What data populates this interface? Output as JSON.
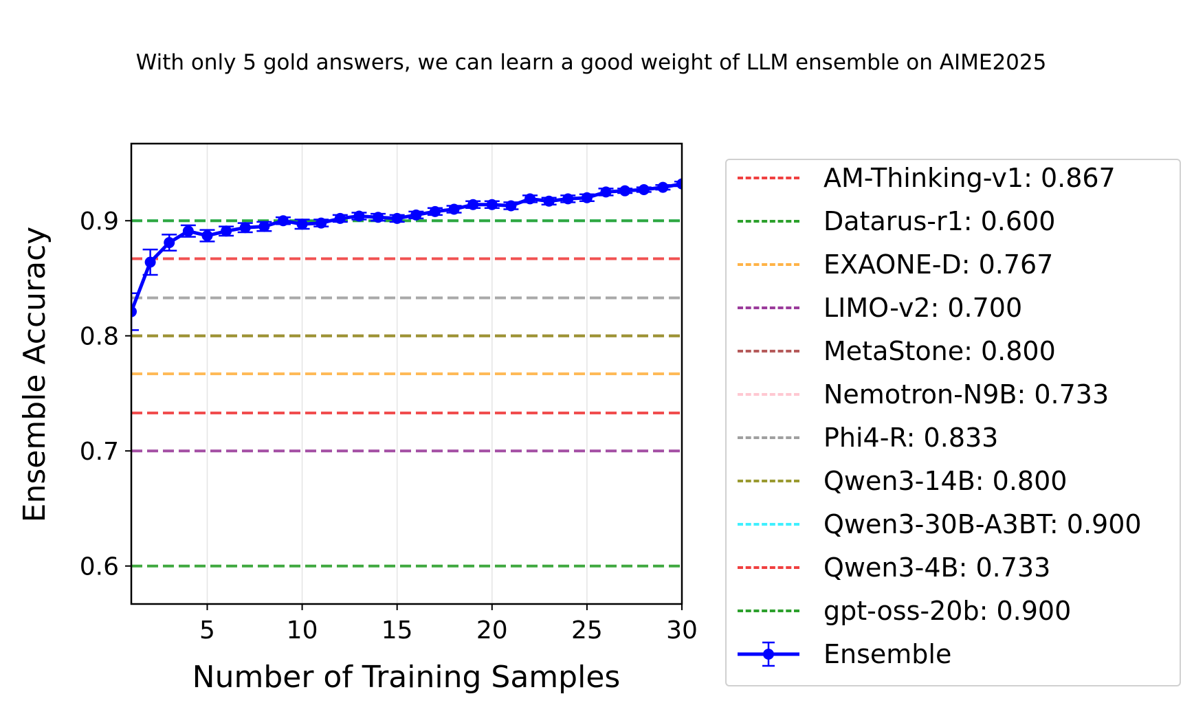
{
  "chart_data": {
    "type": "line",
    "title": "With only 5 gold answers, we can learn a good weight of LLM ensemble on AIME2025",
    "xlabel": "Number of Training Samples",
    "ylabel": "Ensemble Accuracy",
    "xlim": [
      1,
      30
    ],
    "ylim": [
      0.567,
      0.967
    ],
    "xticks": [
      5,
      10,
      15,
      20,
      25,
      30
    ],
    "xtick_labels": [
      "5",
      "10",
      "15",
      "20",
      "25",
      "30"
    ],
    "yticks": [
      0.6,
      0.7,
      0.8,
      0.9
    ],
    "ytick_labels": [
      "0.6",
      "0.7",
      "0.8",
      "0.9"
    ],
    "grid": "x",
    "legend_position": "outside-right",
    "baselines": [
      {
        "name": "AM-Thinking-v1",
        "label": "AM-Thinking-v1: 0.867",
        "value": 0.867,
        "color": "#f04040"
      },
      {
        "name": "Datarus-r1",
        "label": "Datarus-r1: 0.600",
        "value": 0.6,
        "color": "#2ca02c"
      },
      {
        "name": "EXAONE-D",
        "label": "EXAONE-D: 0.767",
        "value": 0.767,
        "color": "#ffb347"
      },
      {
        "name": "LIMO-v2",
        "label": "LIMO-v2: 0.700",
        "value": 0.7,
        "color": "#9b3c9b"
      },
      {
        "name": "MetaStone",
        "label": "MetaStone: 0.800",
        "value": 0.8,
        "color": "#b55a5a"
      },
      {
        "name": "Nemotron-N9B",
        "label": "Nemotron-N9B: 0.733",
        "value": 0.733,
        "color": "#ffc8d2"
      },
      {
        "name": "Phi4-R",
        "label": "Phi4-R: 0.833",
        "value": 0.833,
        "color": "#a0a0a0"
      },
      {
        "name": "Qwen3-14B",
        "label": "Qwen3-14B: 0.800",
        "value": 0.8,
        "color": "#9a9a30"
      },
      {
        "name": "Qwen3-30B-A3BT",
        "label": "Qwen3-30B-A3BT: 0.900",
        "value": 0.9,
        "color": "#40f0ff"
      },
      {
        "name": "Qwen3-4B",
        "label": "Qwen3-4B: 0.733",
        "value": 0.733,
        "color": "#f04040"
      },
      {
        "name": "gpt-oss-20b",
        "label": "gpt-oss-20b: 0.900",
        "value": 0.9,
        "color": "#2ca02c"
      }
    ],
    "series": [
      {
        "name": "Ensemble",
        "label": "Ensemble",
        "color": "#0000ff",
        "x": [
          1,
          2,
          3,
          4,
          5,
          6,
          7,
          8,
          9,
          10,
          11,
          12,
          13,
          14,
          15,
          16,
          17,
          18,
          19,
          20,
          21,
          22,
          23,
          24,
          25,
          26,
          27,
          28,
          29,
          30
        ],
        "y": [
          0.821,
          0.864,
          0.881,
          0.891,
          0.887,
          0.891,
          0.894,
          0.895,
          0.9,
          0.897,
          0.898,
          0.902,
          0.904,
          0.903,
          0.902,
          0.905,
          0.908,
          0.91,
          0.914,
          0.914,
          0.913,
          0.919,
          0.917,
          0.919,
          0.92,
          0.925,
          0.926,
          0.927,
          0.929,
          0.932
        ],
        "err": [
          0.016,
          0.011,
          0.007,
          0.005,
          0.005,
          0.004,
          0.004,
          0.004,
          0.003,
          0.004,
          0.003,
          0.003,
          0.003,
          0.003,
          0.003,
          0.003,
          0.003,
          0.003,
          0.003,
          0.003,
          0.003,
          0.003,
          0.003,
          0.003,
          0.003,
          0.003,
          0.002,
          0.002,
          0.002,
          0.002
        ]
      }
    ]
  }
}
